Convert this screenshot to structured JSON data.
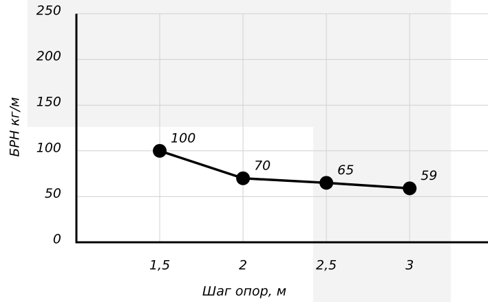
{
  "chart_data": {
    "type": "line",
    "x": [
      1.5,
      2,
      2.5,
      3
    ],
    "series": [
      {
        "name": "БРН",
        "color": "#000000",
        "values": [
          100,
          70,
          65,
          59
        ]
      }
    ],
    "xlabel": "Шаг опор, м",
    "ylabel": "БРН кг/м",
    "xlim": [
      1,
      3.47
    ],
    "xticks": [
      {
        "value": 1.5,
        "label": "1,5"
      },
      2,
      {
        "value": 2.5,
        "label": "2,5"
      },
      3
    ],
    "ylim": [
      0,
      250
    ],
    "yticks": [
      0,
      50,
      100,
      150,
      200,
      250
    ],
    "grid": true
  }
}
